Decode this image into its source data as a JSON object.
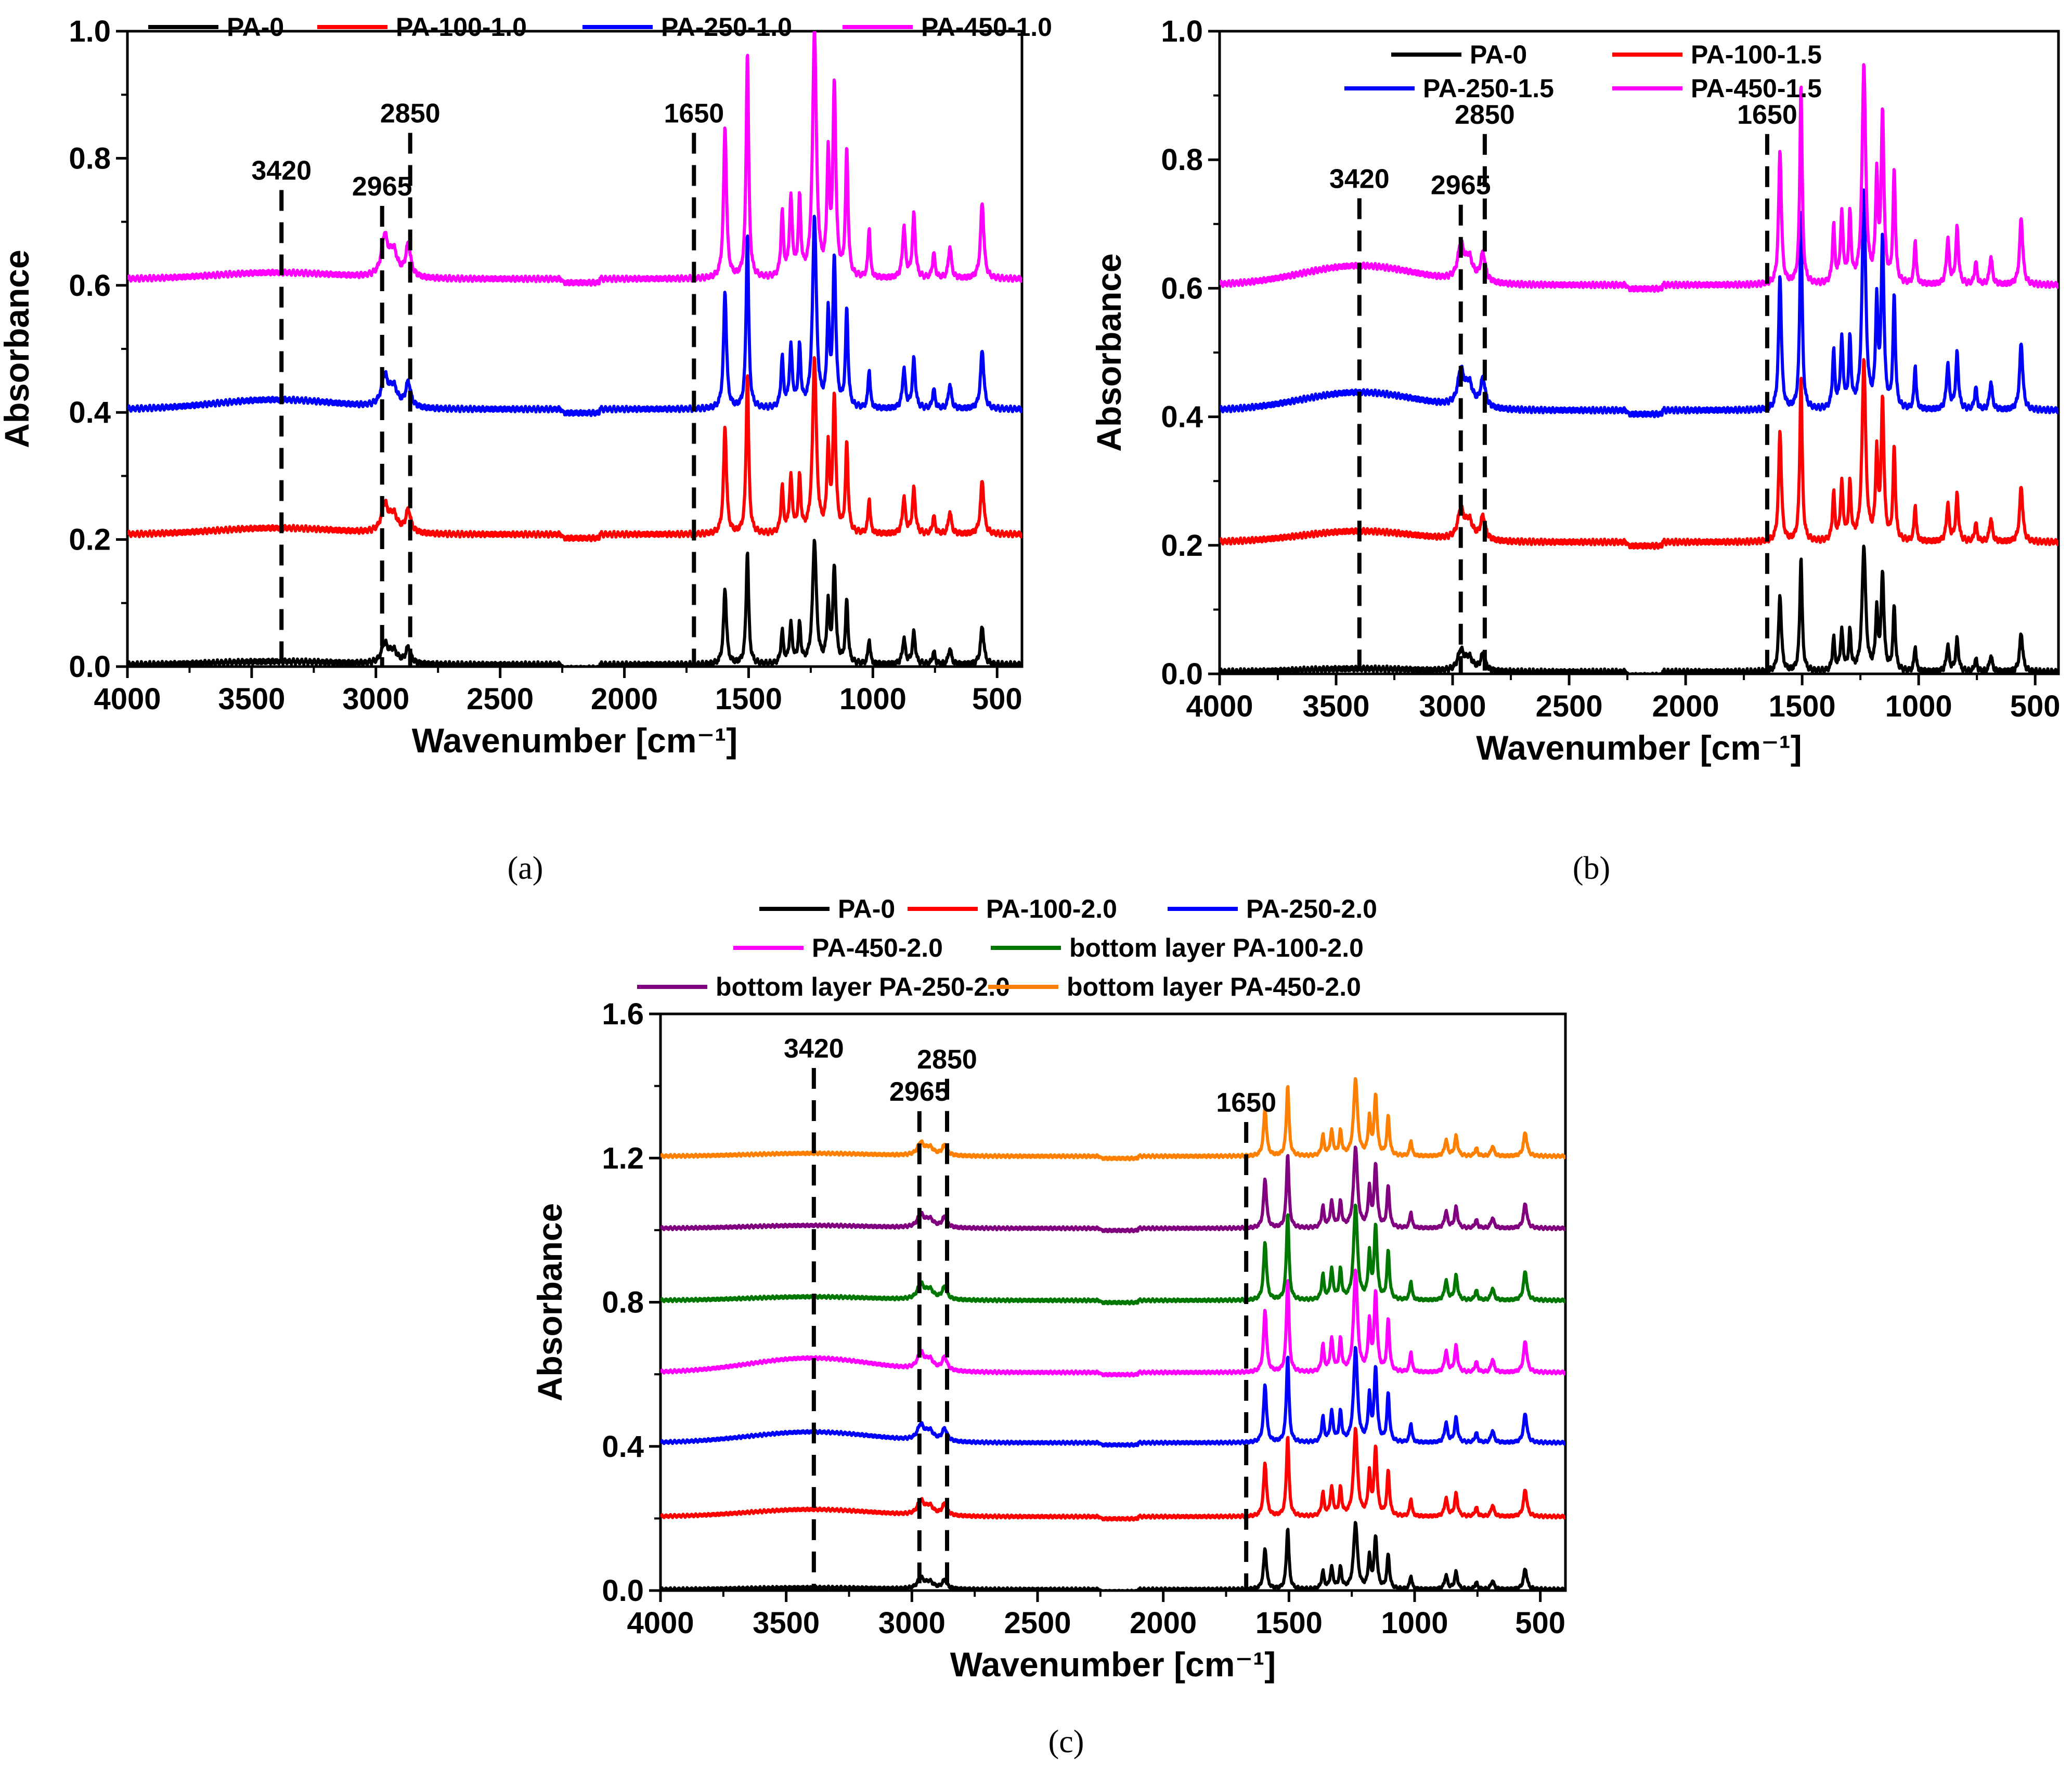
{
  "chart_data": [
    {
      "type": "line",
      "panel": "(a)",
      "xlabel": "Wavenumber [cm⁻¹]",
      "ylabel": "Absorbance",
      "xlim": [
        4000,
        400
      ],
      "ylim": [
        0.0,
        1.0
      ],
      "xticks": [
        "4000",
        "3500",
        "3000",
        "2500",
        "2000",
        "1500",
        "1000",
        "500"
      ],
      "yticks": [
        "0.0",
        "0.2",
        "0.4",
        "0.6",
        "0.8",
        "1.0"
      ],
      "legend_position": "top",
      "grid": false,
      "annotations": [
        {
          "label": "3420",
          "x": 3380,
          "top": 0.75
        },
        {
          "label": "2965",
          "x": 2975,
          "top": 0.725
        },
        {
          "label": "2850",
          "x": 2862,
          "top": 0.84
        },
        {
          "label": "1650",
          "x": 1720,
          "top": 0.84
        }
      ],
      "series": [
        {
          "name": "PA-0",
          "color": "#000000",
          "baseline": 0.003,
          "broad": 0.005,
          "scale": 1.0
        },
        {
          "name": "PA-100-1.0",
          "color": "#ff0000",
          "baseline": 0.208,
          "broad": 0.01,
          "scale": 1.42
        },
        {
          "name": "PA-250-1.0",
          "color": "#0000ff",
          "baseline": 0.405,
          "broad": 0.015,
          "scale": 1.55
        },
        {
          "name": "PA-450-1.0",
          "color": "#ff00ff",
          "baseline": 0.61,
          "broad": 0.01,
          "scale": 2.0
        }
      ]
    },
    {
      "type": "line",
      "panel": "(b)",
      "xlabel": "Wavenumber [cm⁻¹]",
      "ylabel": "Absorbance",
      "xlim": [
        4000,
        400
      ],
      "ylim": [
        0.0,
        1.0
      ],
      "xticks": [
        "4000",
        "3500",
        "3000",
        "2500",
        "2000",
        "1500",
        "1000",
        "500"
      ],
      "yticks": [
        "0.0",
        "0.2",
        "0.4",
        "0.6",
        "0.8",
        "1.0"
      ],
      "legend_position": "top",
      "grid": false,
      "annotations": [
        {
          "label": "3420",
          "x": 3400,
          "top": 0.74
        },
        {
          "label": "2965",
          "x": 2965,
          "top": 0.73
        },
        {
          "label": "2850",
          "x": 2862,
          "top": 0.84
        },
        {
          "label": "1650",
          "x": 1650,
          "top": 0.84
        }
      ],
      "series": [
        {
          "name": "PA-0",
          "color": "#000000",
          "baseline": 0.003,
          "broad": 0.005,
          "scale": 1.0
        },
        {
          "name": "PA-100-1.5",
          "color": "#ff0000",
          "baseline": 0.205,
          "broad": 0.017,
          "scale": 1.45
        },
        {
          "name": "PA-250-1.5",
          "color": "#0000ff",
          "baseline": 0.41,
          "broad": 0.028,
          "scale": 1.75
        },
        {
          "name": "PA-450-1.5",
          "color": "#ff00ff",
          "baseline": 0.605,
          "broad": 0.03,
          "scale": 1.75
        }
      ]
    },
    {
      "type": "line",
      "panel": "(c)",
      "xlabel": "Wavenumber [cm⁻¹]",
      "ylabel": "Absorbance",
      "xlim": [
        4000,
        400
      ],
      "ylim": [
        0.0,
        1.6
      ],
      "xticks": [
        "4000",
        "3500",
        "3000",
        "2500",
        "2000",
        "1500",
        "1000",
        "500"
      ],
      "yticks": [
        "0.0",
        "0.4",
        "0.8",
        "1.2",
        "1.6"
      ],
      "legend_position": "top",
      "grid": false,
      "annotations": [
        {
          "label": "3420",
          "x": 3390,
          "top": 1.45
        },
        {
          "label": "2965",
          "x": 2970,
          "top": 1.33
        },
        {
          "label": "2850",
          "x": 2860,
          "top": 1.42
        },
        {
          "label": "1650",
          "x": 1670,
          "top": 1.3
        }
      ],
      "series": [
        {
          "name": "PA-0",
          "color": "#000000",
          "baseline": 0.003,
          "broad": 0.005,
          "scale": 0.95
        },
        {
          "name": "PA-100-2.0",
          "color": "#ff0000",
          "baseline": 0.205,
          "broad": 0.02,
          "scale": 1.25
        },
        {
          "name": "PA-250-2.0",
          "color": "#0000ff",
          "baseline": 0.41,
          "broad": 0.03,
          "scale": 1.35
        },
        {
          "name": "PA-450-2.0",
          "color": "#ff00ff",
          "baseline": 0.605,
          "broad": 0.04,
          "scale": 1.45
        },
        {
          "name": "bottom layer PA-100-2.0",
          "color": "#007700",
          "baseline": 0.805,
          "broad": 0.01,
          "scale": 1.35
        },
        {
          "name": "bottom layer PA-250-2.0",
          "color": "#800080",
          "baseline": 1.005,
          "broad": 0.008,
          "scale": 1.15
        },
        {
          "name": "bottom layer PA-450-2.0",
          "color": "#ff8000",
          "baseline": 1.205,
          "broad": 0.008,
          "scale": 1.1
        }
      ]
    }
  ],
  "peaks": [
    [
      2965,
      0.03,
      15
    ],
    [
      2930,
      0.02,
      20
    ],
    [
      2870,
      0.025,
      12
    ],
    [
      1595,
      0.12,
      7
    ],
    [
      1505,
      0.18,
      6
    ],
    [
      1365,
      0.05,
      6
    ],
    [
      1330,
      0.06,
      7
    ],
    [
      1295,
      0.06,
      6
    ],
    [
      1235,
      0.195,
      9
    ],
    [
      1180,
      0.09,
      6
    ],
    [
      1155,
      0.15,
      7
    ],
    [
      1105,
      0.1,
      6
    ],
    [
      1015,
      0.04,
      5
    ],
    [
      875,
      0.04,
      7
    ],
    [
      835,
      0.05,
      7
    ],
    [
      755,
      0.02,
      6
    ],
    [
      690,
      0.025,
      7
    ],
    [
      560,
      0.06,
      8
    ]
  ],
  "captions": {
    "a": "(a)",
    "b": "(b)",
    "c": "(c)"
  }
}
